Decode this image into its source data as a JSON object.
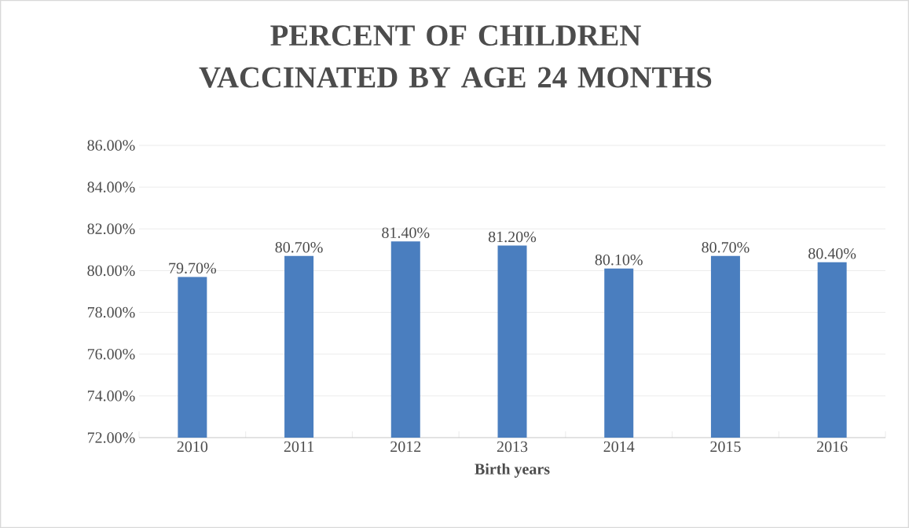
{
  "chart_data": {
    "type": "bar",
    "title": "PERCENT OF CHILDREN VACCINATED BY AGE 24 MONTHS",
    "xlabel": "Birth years",
    "categories": [
      "2010",
      "2011",
      "2012",
      "2013",
      "2014",
      "2015",
      "2016"
    ],
    "values": [
      79.7,
      80.7,
      81.4,
      81.2,
      80.1,
      80.7,
      80.4
    ],
    "value_labels": [
      "79.70%",
      "80.70%",
      "81.40%",
      "81.20%",
      "80.10%",
      "80.70%",
      "80.40%"
    ],
    "color": "#4a7ebf",
    "ylim": [
      72,
      86
    ],
    "yticks": [
      {
        "value": 72,
        "label": "72.00%"
      },
      {
        "value": 74,
        "label": "74.00%"
      },
      {
        "value": 76,
        "label": "76.00%"
      },
      {
        "value": 78,
        "label": "78.00%"
      },
      {
        "value": 80,
        "label": "80.00%"
      },
      {
        "value": 82,
        "label": "82.00%"
      },
      {
        "value": 84,
        "label": "84.00%"
      },
      {
        "value": 86,
        "label": "86.00%"
      }
    ],
    "grid": "y"
  }
}
